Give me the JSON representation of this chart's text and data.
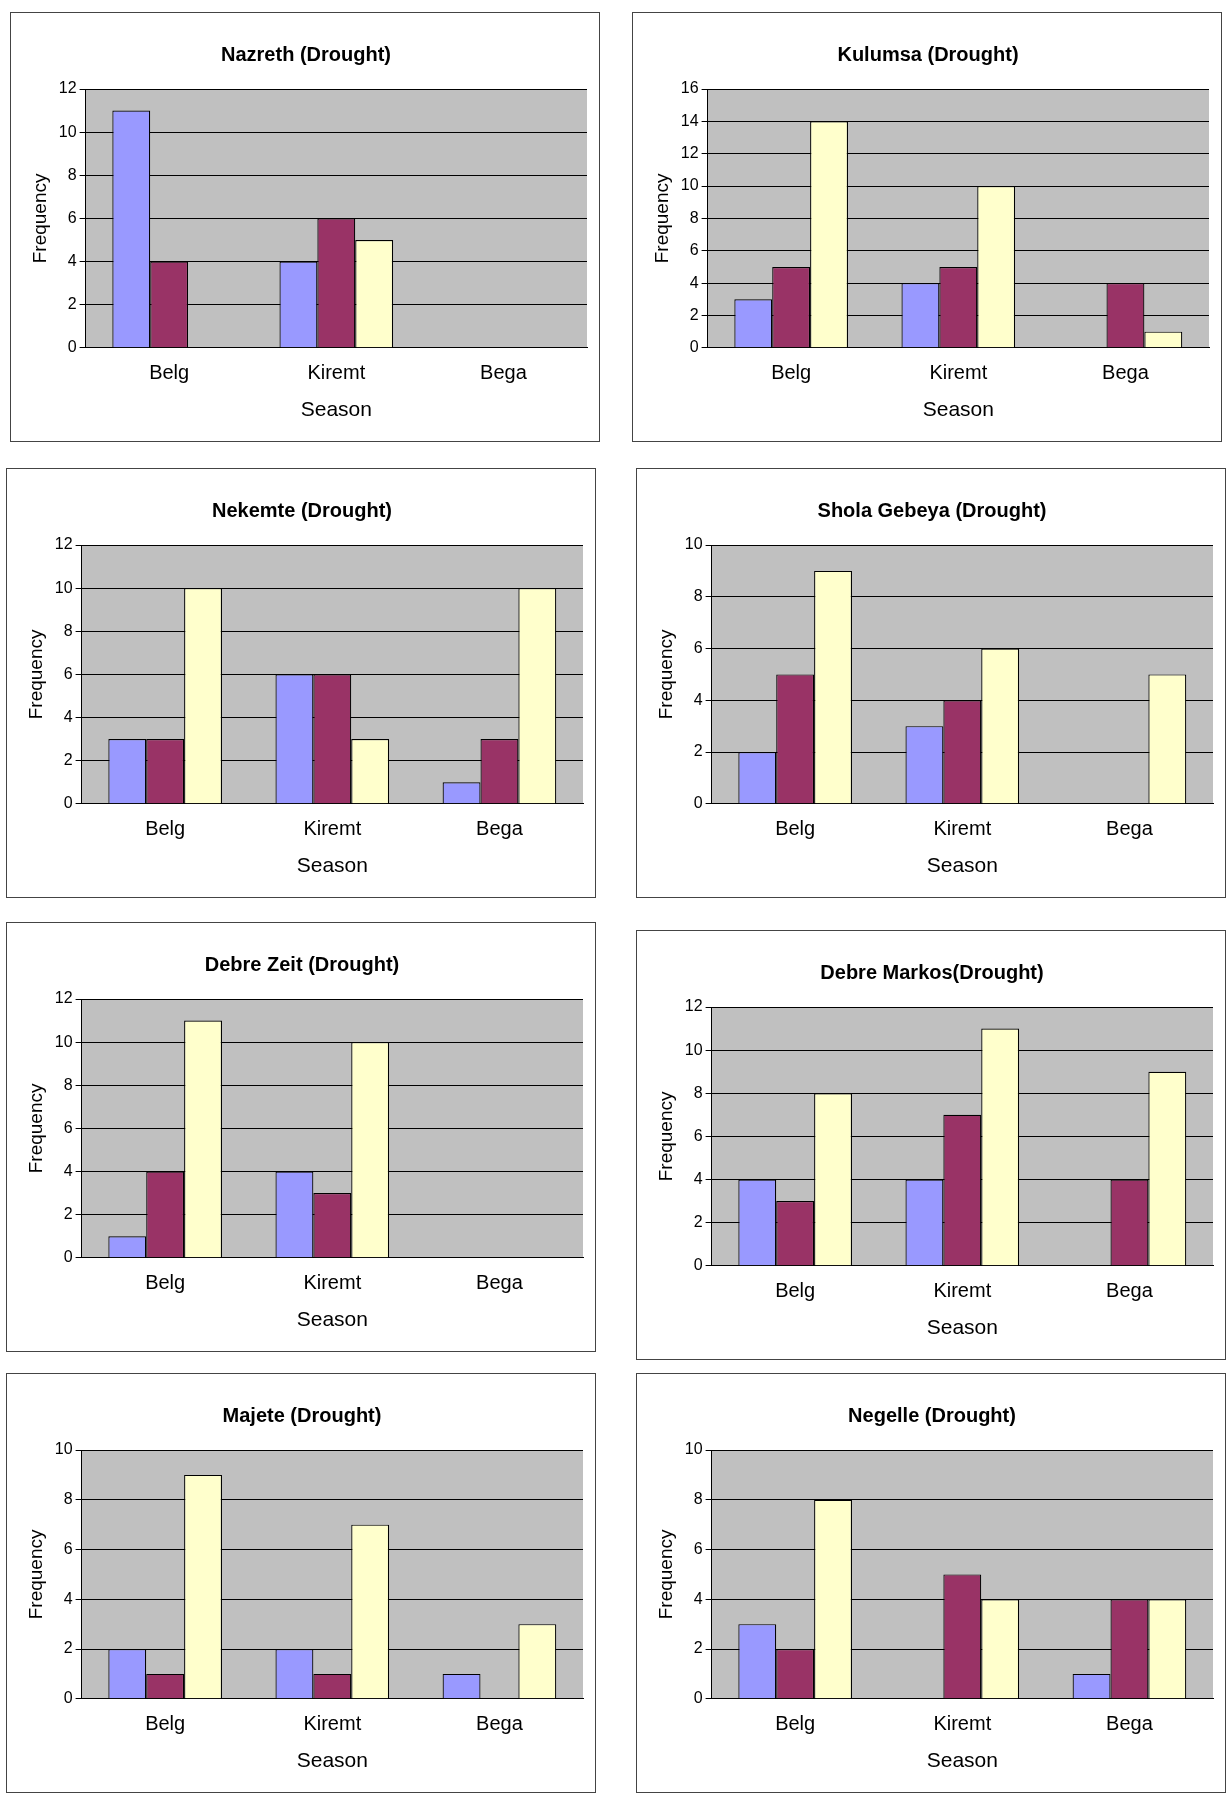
{
  "chart_data": [
    {
      "type": "bar",
      "title": "Nazreth (Drought)",
      "xlabel": "Season",
      "ylabel": "Frequency",
      "categories": [
        "Belg",
        "Kiremt",
        "Bega"
      ],
      "ylim": [
        0,
        12
      ],
      "yticks": [
        0,
        2,
        4,
        6,
        8,
        10,
        12
      ],
      "grid": "y",
      "series": [
        {
          "color": "#9999ff",
          "values": [
            11,
            4,
            0
          ]
        },
        {
          "color": "#993366",
          "values": [
            4,
            6,
            0
          ]
        },
        {
          "color": "#ffffcc",
          "values": [
            0,
            5,
            0
          ]
        }
      ]
    },
    {
      "type": "bar",
      "title": "Kulumsa (Drought)",
      "xlabel": "Season",
      "ylabel": "Frequency",
      "categories": [
        "Belg",
        "Kiremt",
        "Bega"
      ],
      "ylim": [
        0,
        16
      ],
      "yticks": [
        0,
        2,
        4,
        6,
        8,
        10,
        12,
        14,
        16
      ],
      "grid": "y",
      "series": [
        {
          "color": "#9999ff",
          "values": [
            3,
            4,
            0
          ]
        },
        {
          "color": "#993366",
          "values": [
            5,
            5,
            4
          ]
        },
        {
          "color": "#ffffcc",
          "values": [
            14,
            10,
            1
          ]
        }
      ]
    },
    {
      "type": "bar",
      "title": "Nekemte (Drought)",
      "xlabel": "Season",
      "ylabel": "Frequency",
      "categories": [
        "Belg",
        "Kiremt",
        "Bega"
      ],
      "ylim": [
        0,
        12
      ],
      "yticks": [
        0,
        2,
        4,
        6,
        8,
        10,
        12
      ],
      "grid": "y",
      "series": [
        {
          "color": "#9999ff",
          "values": [
            3,
            6,
            1
          ]
        },
        {
          "color": "#993366",
          "values": [
            3,
            6,
            3
          ]
        },
        {
          "color": "#ffffcc",
          "values": [
            10,
            3,
            10
          ]
        }
      ]
    },
    {
      "type": "bar",
      "title": "Shola Gebeya (Drought)",
      "xlabel": "Season",
      "ylabel": "Frequency",
      "categories": [
        "Belg",
        "Kiremt",
        "Bega"
      ],
      "ylim": [
        0,
        10
      ],
      "yticks": [
        0,
        2,
        4,
        6,
        8,
        10
      ],
      "grid": "y",
      "series": [
        {
          "color": "#9999ff",
          "values": [
            2,
            3,
            0
          ]
        },
        {
          "color": "#993366",
          "values": [
            5,
            4,
            0
          ]
        },
        {
          "color": "#ffffcc",
          "values": [
            9,
            6,
            5
          ]
        }
      ]
    },
    {
      "type": "bar",
      "title": "Debre Zeit (Drought)",
      "xlabel": "Season",
      "ylabel": "Frequency",
      "categories": [
        "Belg",
        "Kiremt",
        "Bega"
      ],
      "ylim": [
        0,
        12
      ],
      "yticks": [
        0,
        2,
        4,
        6,
        8,
        10,
        12
      ],
      "grid": "y",
      "series": [
        {
          "color": "#9999ff",
          "values": [
            1,
            4,
            0
          ]
        },
        {
          "color": "#993366",
          "values": [
            4,
            3,
            0
          ]
        },
        {
          "color": "#ffffcc",
          "values": [
            11,
            10,
            0
          ]
        }
      ]
    },
    {
      "type": "bar",
      "title": "Debre Markos(Drought)",
      "xlabel": "Season",
      "ylabel": "Frequency",
      "categories": [
        "Belg",
        "Kiremt",
        "Bega"
      ],
      "ylim": [
        0,
        12
      ],
      "yticks": [
        0,
        2,
        4,
        6,
        8,
        10,
        12
      ],
      "grid": "y",
      "series": [
        {
          "color": "#9999ff",
          "values": [
            4,
            4,
            0
          ]
        },
        {
          "color": "#993366",
          "values": [
            3,
            7,
            4
          ]
        },
        {
          "color": "#ffffcc",
          "values": [
            8,
            11,
            9
          ]
        }
      ]
    },
    {
      "type": "bar",
      "title": "Majete (Drought)",
      "xlabel": "Season",
      "ylabel": "Frequency",
      "categories": [
        "Belg",
        "Kiremt",
        "Bega"
      ],
      "ylim": [
        0,
        10
      ],
      "yticks": [
        0,
        2,
        4,
        6,
        8,
        10
      ],
      "grid": "y",
      "series": [
        {
          "color": "#9999ff",
          "values": [
            2,
            2,
            1
          ]
        },
        {
          "color": "#993366",
          "values": [
            1,
            1,
            0
          ]
        },
        {
          "color": "#ffffcc",
          "values": [
            9,
            7,
            3
          ]
        }
      ]
    },
    {
      "type": "bar",
      "title": "Negelle (Drought)",
      "xlabel": "Season",
      "ylabel": "Frequency",
      "categories": [
        "Belg",
        "Kiremt",
        "Bega"
      ],
      "ylim": [
        0,
        10
      ],
      "yticks": [
        0,
        2,
        4,
        6,
        8,
        10
      ],
      "grid": "y",
      "series": [
        {
          "color": "#9999ff",
          "values": [
            3,
            0,
            1
          ]
        },
        {
          "color": "#993366",
          "values": [
            2,
            5,
            4
          ]
        },
        {
          "color": "#ffffcc",
          "values": [
            8,
            4,
            4
          ]
        }
      ]
    }
  ]
}
